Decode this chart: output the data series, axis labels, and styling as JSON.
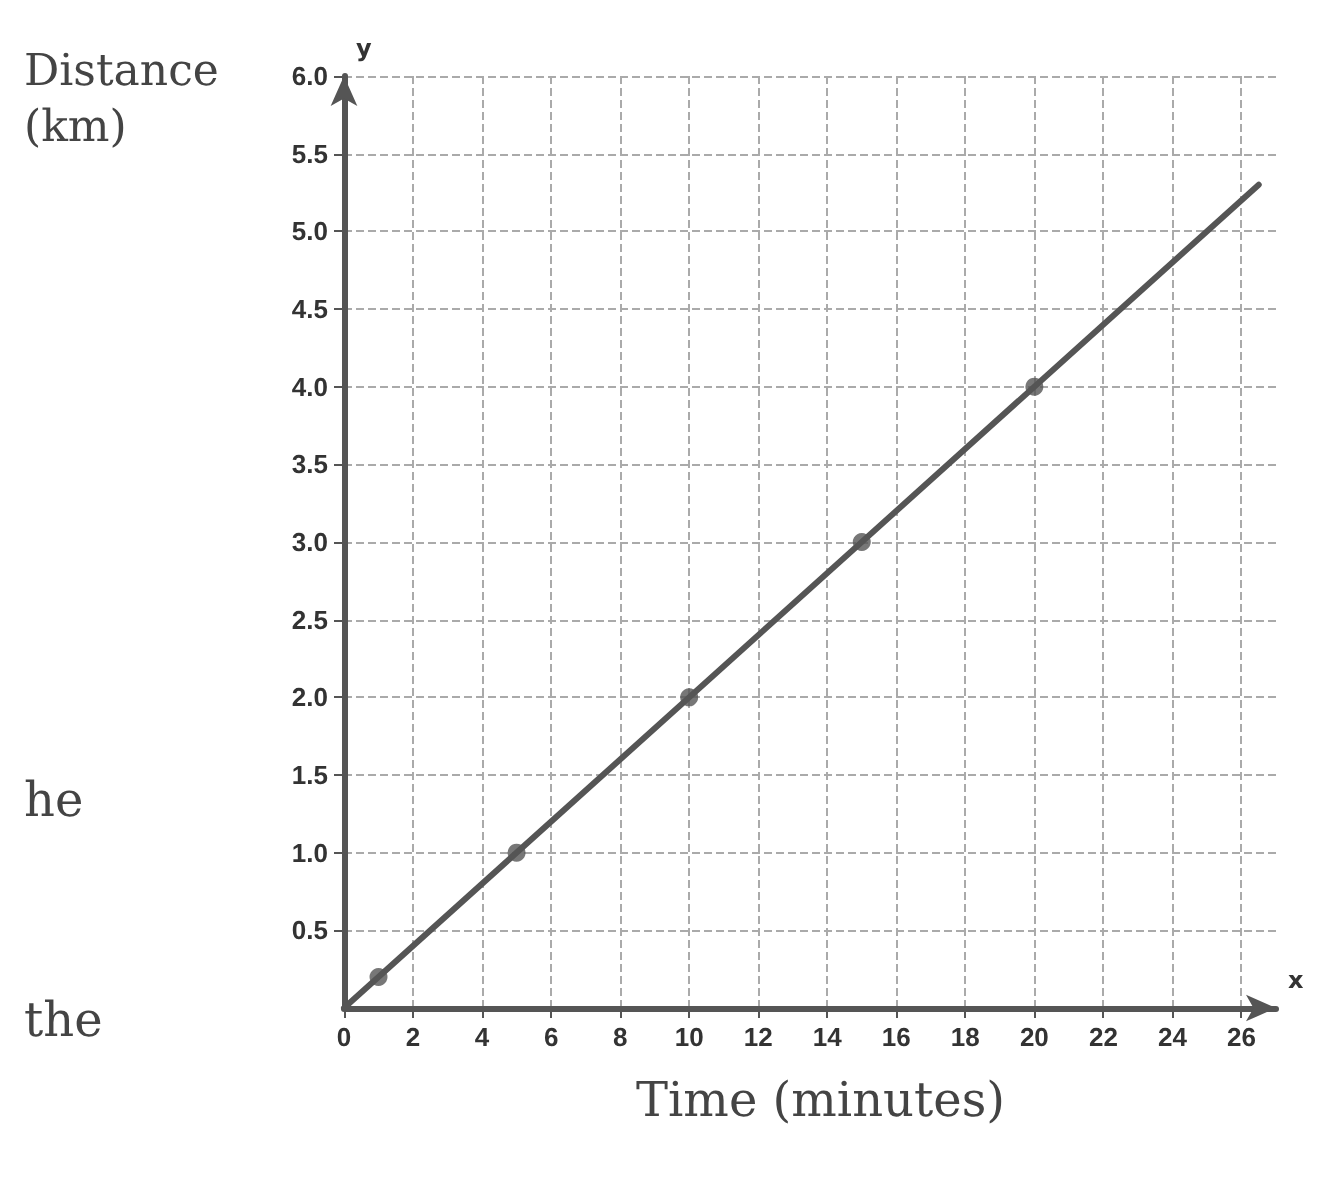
{
  "chart_data": {
    "type": "line",
    "xlabel": "Time (minutes)",
    "ylabel": "Distance (km)",
    "annotations": [
      "he",
      "the",
      "y",
      "x"
    ],
    "series": [
      {
        "color": "#555555",
        "x": [
          0,
          26.5
        ],
        "values": [
          0,
          5.3
        ],
        "marker": "none"
      },
      {
        "type": "scatter",
        "color": "#555555",
        "x": [
          1,
          5,
          10,
          15,
          20
        ],
        "values": [
          0.2,
          1,
          2,
          3,
          4
        ],
        "marker": "circle"
      }
    ],
    "xlim": [
      0,
      27
    ],
    "ylim": [
      0,
      6
    ],
    "xticks": [
      0,
      2,
      4,
      6,
      8,
      10,
      12,
      14,
      16,
      18,
      20,
      22,
      24,
      26
    ],
    "yticks": [
      0.5,
      {
        "value": 1,
        "label": "1.0"
      },
      1.5,
      {
        "value": 2,
        "label": "2.0"
      },
      2.5,
      {
        "value": 3,
        "label": "3.0"
      },
      3.5,
      {
        "value": 4,
        "label": "4.0"
      },
      4.5,
      {
        "value": 5,
        "label": "5.0"
      },
      5.5,
      {
        "value": 6,
        "label": "6.0"
      }
    ],
    "grid": true
  }
}
